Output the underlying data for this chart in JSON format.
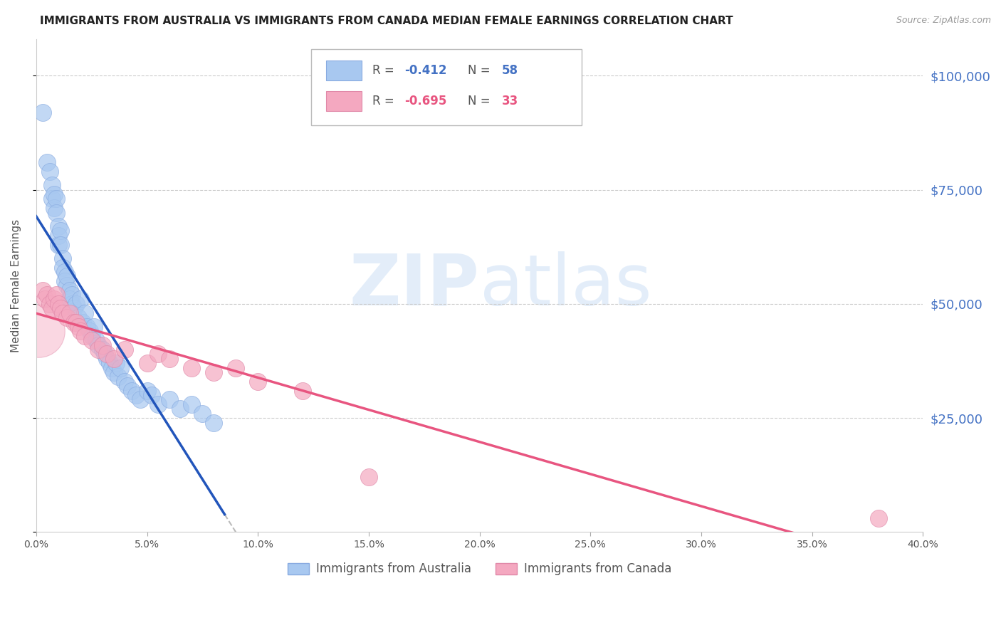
{
  "title": "IMMIGRANTS FROM AUSTRALIA VS IMMIGRANTS FROM CANADA MEDIAN FEMALE EARNINGS CORRELATION CHART",
  "source": "Source: ZipAtlas.com",
  "ylabel": "Median Female Earnings",
  "xlim": [
    0.0,
    0.4
  ],
  "ylim": [
    0,
    108000
  ],
  "watermark_zip": "ZIP",
  "watermark_atlas": "atlas",
  "legend_1_label": "Immigrants from Australia",
  "legend_2_label": "Immigrants from Canada",
  "r1": -0.412,
  "n1": 58,
  "r2": -0.695,
  "n2": 33,
  "color_australia": "#a8c8f0",
  "color_canada": "#f4a8c0",
  "color_australia_line": "#2255bb",
  "color_canada_line": "#e85580",
  "australia_x": [
    0.003,
    0.005,
    0.006,
    0.007,
    0.007,
    0.008,
    0.008,
    0.009,
    0.009,
    0.01,
    0.01,
    0.01,
    0.011,
    0.011,
    0.012,
    0.012,
    0.013,
    0.013,
    0.014,
    0.014,
    0.015,
    0.015,
    0.016,
    0.016,
    0.017,
    0.018,
    0.019,
    0.02,
    0.021,
    0.022,
    0.023,
    0.024,
    0.025,
    0.026,
    0.027,
    0.028,
    0.03,
    0.031,
    0.032,
    0.033,
    0.034,
    0.035,
    0.036,
    0.037,
    0.038,
    0.04,
    0.041,
    0.043,
    0.045,
    0.047,
    0.05,
    0.052,
    0.055,
    0.06,
    0.065,
    0.07,
    0.075,
    0.08
  ],
  "australia_y": [
    92000,
    81000,
    79000,
    76000,
    73000,
    74000,
    71000,
    73000,
    70000,
    67000,
    65000,
    63000,
    66000,
    63000,
    60000,
    58000,
    57000,
    55000,
    54000,
    56000,
    53000,
    51000,
    50000,
    52000,
    49000,
    50000,
    47000,
    51000,
    46000,
    48000,
    45000,
    44000,
    43000,
    45000,
    42000,
    41000,
    40000,
    39000,
    38000,
    37000,
    36000,
    35000,
    37000,
    34000,
    36000,
    33000,
    32000,
    31000,
    30000,
    29000,
    31000,
    30000,
    28000,
    29000,
    27000,
    28000,
    26000,
    24000
  ],
  "canada_x": [
    0.003,
    0.004,
    0.005,
    0.006,
    0.007,
    0.008,
    0.009,
    0.01,
    0.011,
    0.012,
    0.014,
    0.015,
    0.017,
    0.018,
    0.019,
    0.02,
    0.022,
    0.025,
    0.028,
    0.03,
    0.032,
    0.035,
    0.04,
    0.05,
    0.055,
    0.06,
    0.07,
    0.08,
    0.09,
    0.1,
    0.12,
    0.15,
    0.38
  ],
  "canada_y": [
    53000,
    51000,
    52000,
    50000,
    49000,
    51000,
    52000,
    50000,
    49000,
    48000,
    47000,
    48000,
    46000,
    46000,
    45000,
    44000,
    43000,
    42000,
    40000,
    41000,
    39000,
    38000,
    40000,
    37000,
    39000,
    38000,
    36000,
    35000,
    36000,
    33000,
    31000,
    12000,
    3000
  ]
}
